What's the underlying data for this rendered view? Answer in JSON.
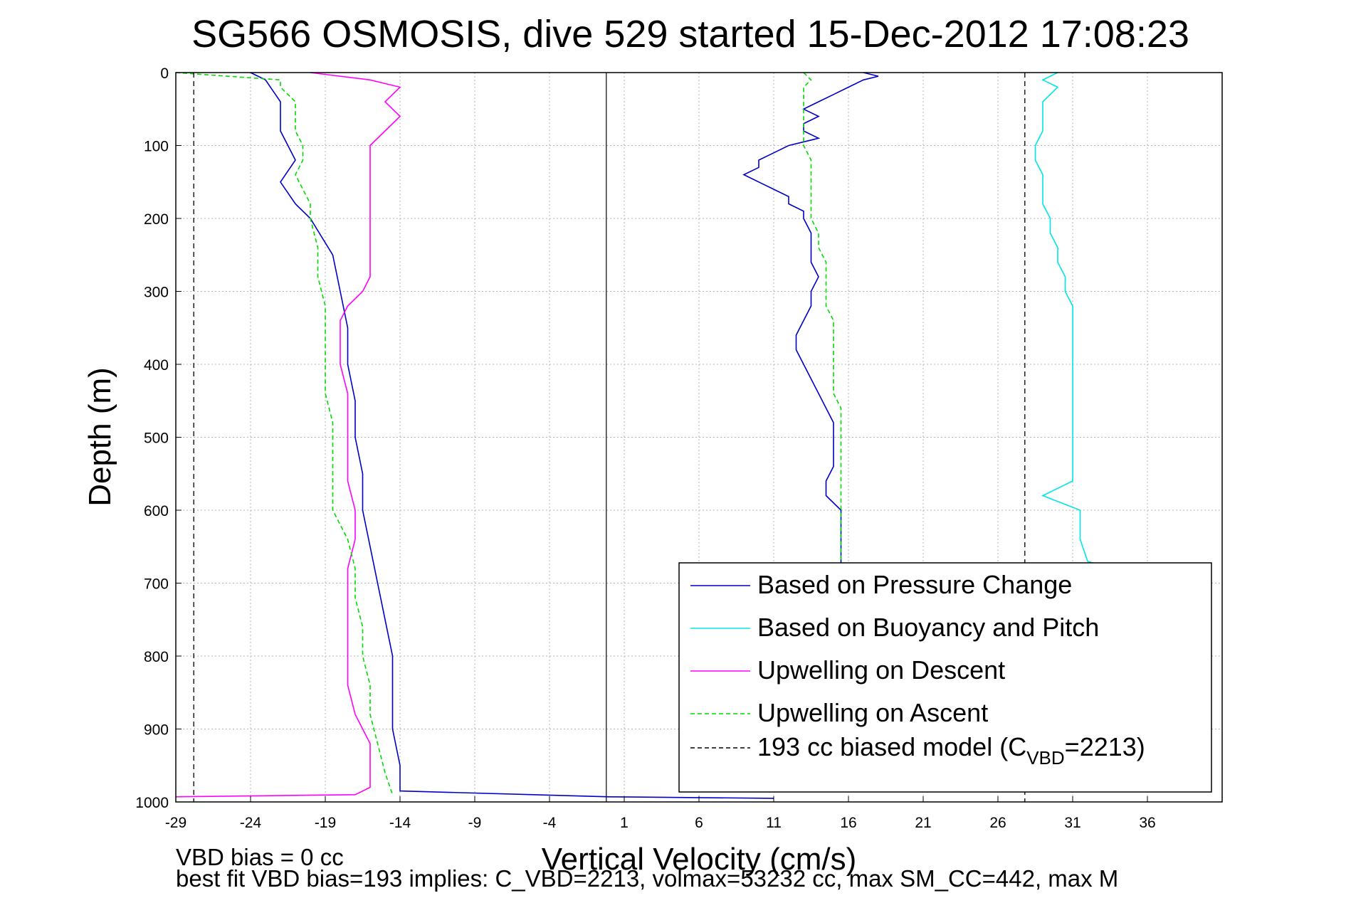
{
  "chart_data": {
    "type": "line",
    "title": "SG566 OSMOSIS, dive 529 started 15-Dec-2012 17:08:23",
    "xlabel": "Vertical Velocity (cm/s)",
    "ylabel": "Depth (m)",
    "xlim": [
      -29,
      41
    ],
    "ylim": [
      0,
      1000
    ],
    "y_reversed": true,
    "grid": true,
    "x_ticks": [
      -29,
      -24,
      -19,
      -14,
      -9,
      -4,
      1,
      6,
      11,
      16,
      21,
      26,
      31,
      36
    ],
    "y_ticks": [
      0,
      100,
      200,
      300,
      400,
      500,
      600,
      700,
      800,
      900,
      1000
    ],
    "legend_position": "bottom-right",
    "series": [
      {
        "name": "Based on Pressure Change",
        "color": "#0000c8",
        "style": "solid",
        "depth": [
          0,
          5,
          10,
          20,
          30,
          40,
          50,
          60,
          70,
          80,
          90,
          100,
          110,
          120,
          130,
          140,
          150,
          160,
          170,
          180,
          190,
          200,
          220,
          240,
          260,
          280,
          300,
          320,
          340,
          360,
          380,
          400,
          420,
          440,
          460,
          480,
          500,
          520,
          540,
          560,
          580,
          600,
          620,
          640,
          660,
          680
        ],
        "velocity": [
          17,
          18,
          17,
          16,
          15,
          14,
          13,
          14,
          13,
          13,
          14,
          12,
          11,
          10,
          10,
          9,
          10,
          11,
          12,
          12,
          13,
          13,
          13.5,
          13.5,
          13.5,
          14,
          13.5,
          13.5,
          13,
          12.5,
          12.5,
          13,
          13.5,
          14,
          14.5,
          15,
          15,
          15,
          15,
          14.5,
          14.5,
          15.5,
          15.5,
          15.5,
          15.5,
          15.5
        ]
      },
      {
        "name": "Based on Pressure Change",
        "color": "#0000c8",
        "style": "solid",
        "depth": [
          0,
          10,
          40,
          80,
          120,
          150,
          180,
          200,
          250,
          300,
          350,
          400,
          450,
          500,
          550,
          600,
          650,
          700,
          750,
          800,
          850,
          900,
          950,
          985,
          993,
          995
        ],
        "velocity": [
          -24,
          -23,
          -22,
          -22,
          -21,
          -22,
          -21,
          -20,
          -18.5,
          -18,
          -17.5,
          -17.5,
          -17,
          -17,
          -16.5,
          -16.5,
          -16,
          -15.5,
          -15,
          -14.5,
          -14.5,
          -14.5,
          -14,
          -14,
          0,
          11
        ]
      },
      {
        "name": "Based on Buoyancy and Pitch",
        "color": "#00e5e5",
        "style": "solid",
        "depth": [
          0,
          10,
          20,
          40,
          60,
          80,
          100,
          120,
          140,
          160,
          180,
          200,
          220,
          240,
          260,
          280,
          300,
          320,
          340,
          360,
          380,
          400,
          440,
          480,
          520,
          560,
          580,
          600,
          640,
          670,
          690,
          700
        ],
        "velocity": [
          30,
          29,
          30,
          29,
          29,
          29,
          28.5,
          28.5,
          29,
          29,
          29,
          29.5,
          29.5,
          30,
          30,
          30.5,
          30.5,
          31,
          31,
          31,
          31,
          31,
          31,
          31,
          31,
          31,
          29,
          31.5,
          31.5,
          32,
          35,
          37
        ]
      },
      {
        "name": "Upwelling on Descent",
        "color": "#ff00ff",
        "style": "solid",
        "depth": [
          0,
          10,
          20,
          40,
          60,
          80,
          100,
          120,
          140,
          160,
          180,
          200,
          220,
          240,
          260,
          280,
          300,
          320,
          340,
          360,
          380,
          400,
          440,
          480,
          520,
          560,
          600,
          640,
          680,
          720,
          760,
          800,
          840,
          880,
          920,
          960,
          980,
          990,
          993
        ],
        "velocity": [
          -20,
          -16,
          -14,
          -15,
          -14,
          -15,
          -16,
          -16,
          -16,
          -16,
          -16,
          -16,
          -16,
          -16,
          -16,
          -16,
          -16.5,
          -17.5,
          -18,
          -18,
          -18,
          -18,
          -17.5,
          -17.5,
          -17.5,
          -17.5,
          -17,
          -17,
          -17.5,
          -17.5,
          -17.5,
          -17.5,
          -17.5,
          -17,
          -16,
          -16,
          -16,
          -17,
          -29
        ]
      },
      {
        "name": "Upwelling on Ascent",
        "color": "#00dd00",
        "style": "dashed",
        "depth": [
          0,
          10,
          20,
          40,
          60,
          80,
          100,
          120,
          140,
          160,
          180,
          200,
          240,
          280,
          320,
          360,
          400,
          440,
          480,
          520,
          560,
          600,
          640,
          680,
          720,
          760,
          800,
          840,
          880,
          920,
          960,
          990
        ],
        "velocity": [
          -29,
          -22,
          -22,
          -21,
          -21,
          -21,
          -20.5,
          -20.5,
          -21,
          -20.5,
          -20,
          -20,
          -19.5,
          -19.5,
          -19,
          -19,
          -19,
          -19,
          -18.5,
          -18.5,
          -18.5,
          -18.5,
          -17.5,
          -17,
          -17,
          -16.5,
          -16.5,
          -16,
          -16,
          -15.5,
          -15,
          -14.5
        ]
      },
      {
        "name": "Upwelling on Ascent",
        "color": "#00dd00",
        "style": "dashed",
        "depth": [
          0,
          10,
          20,
          40,
          60,
          80,
          100,
          120,
          140,
          160,
          180,
          200,
          220,
          240,
          260,
          280,
          300,
          320,
          340,
          360,
          380,
          400,
          420,
          440,
          460,
          480,
          500,
          520,
          540,
          560,
          580,
          600,
          640,
          660,
          670
        ],
        "velocity": [
          13,
          13.5,
          13,
          13,
          13,
          13,
          13,
          13.5,
          13.5,
          13.5,
          13.5,
          13.5,
          14,
          14,
          14.5,
          14.5,
          14.5,
          14.5,
          15,
          15,
          15,
          15,
          15,
          15,
          15.5,
          15.5,
          15.5,
          15.5,
          15.5,
          15.5,
          15.5,
          15.5,
          15.5,
          15.5,
          15.5
        ]
      },
      {
        "name": "193 cc biased model (C",
        "color": "#000000",
        "style": "dashed",
        "depth": [
          0,
          1000
        ],
        "velocity": [
          -27.8,
          -27.8
        ]
      },
      {
        "name": "193 cc biased model (C",
        "color": "#000000",
        "style": "dashed",
        "depth": [
          0,
          1000
        ],
        "velocity": [
          27.8,
          27.8
        ]
      }
    ],
    "reference_line": {
      "velocity": -0.2,
      "color": "#000000"
    },
    "legend_entries": [
      {
        "label": "Based on Pressure Change",
        "color": "#0000c8",
        "style": "solid"
      },
      {
        "label": "Based on Buoyancy and Pitch",
        "color": "#00e5e5",
        "style": "solid"
      },
      {
        "label": "Upwelling on Descent",
        "color": "#ff00ff",
        "style": "solid"
      },
      {
        "label": "Upwelling on Ascent",
        "color": "#00dd00",
        "style": "dashed"
      },
      {
        "label": "193 cc biased model (C",
        "label_sub": "VBD",
        "label_tail": "=2213)",
        "color": "#000000",
        "style": "dashed"
      }
    ]
  },
  "notes": {
    "line1": "VBD bias = 0 cc",
    "line2": "best fit VBD bias=193 implies: C_VBD=2213, volmax=53232 cc, max SM_CC=442, max M"
  }
}
